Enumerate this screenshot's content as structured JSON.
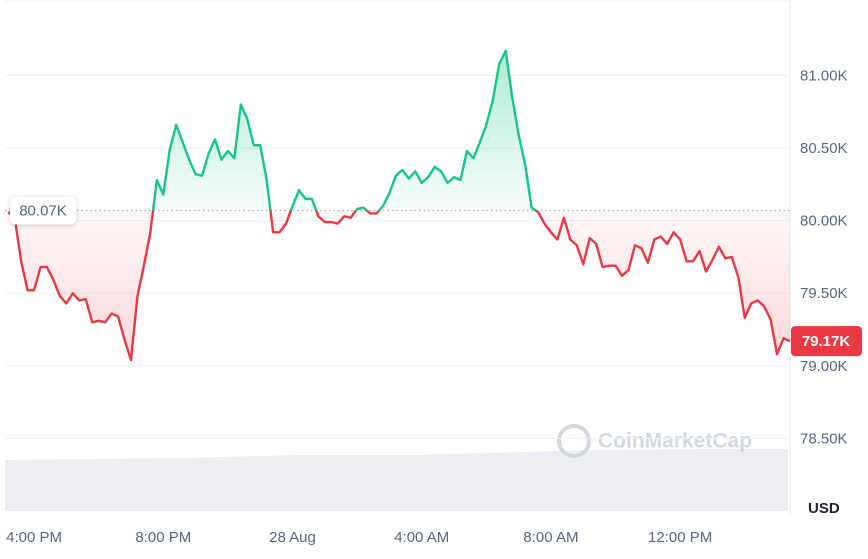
{
  "chart_data": {
    "type": "line",
    "x": [
      -0.8,
      -0.6,
      -0.4,
      -0.2,
      0,
      0.2,
      0.4,
      0.6,
      0.8,
      1,
      1.2,
      1.4,
      1.6,
      1.8,
      2,
      2.2,
      2.4,
      2.6,
      2.8,
      3,
      3.2,
      3.4,
      3.6,
      3.8,
      4,
      4.2,
      4.4,
      4.6,
      4.8,
      5,
      5.2,
      5.4,
      5.6,
      5.8,
      6,
      6.2,
      6.4,
      6.6,
      6.8,
      7,
      7.2,
      7.4,
      7.6,
      7.8,
      8,
      8.2,
      8.4,
      8.6,
      8.8,
      9,
      9.2,
      9.4,
      9.6,
      9.8,
      10,
      10.2,
      10.4,
      10.6,
      10.8,
      11,
      11.2,
      11.4,
      11.6,
      11.8,
      12,
      12.2,
      12.4,
      12.6,
      12.8,
      13,
      13.2,
      13.4,
      13.6,
      13.8,
      14,
      14.2,
      14.4,
      14.6,
      14.8,
      15,
      15.2,
      15.4,
      15.6,
      15.8,
      16,
      16.2,
      16.4,
      16.6,
      16.8,
      17,
      17.2,
      17.4,
      17.6,
      17.8,
      18,
      18.2,
      18.4,
      18.6,
      18.8,
      19,
      19.2,
      19.4,
      19.6,
      19.8,
      20,
      20.2,
      20.4,
      20.6,
      20.8,
      21,
      21.2,
      21.4,
      21.6,
      21.8,
      22,
      22.2,
      22.4,
      22.6,
      22.8,
      23,
      23.2,
      23.4
    ],
    "values": [
      80060,
      80020,
      79720,
      79520,
      79520,
      79680,
      79680,
      79590,
      79480,
      79430,
      79500,
      79450,
      79460,
      79300,
      79310,
      79300,
      79360,
      79340,
      79180,
      79040,
      79480,
      79690,
      79920,
      80280,
      80180,
      80490,
      80660,
      80540,
      80420,
      80320,
      80310,
      80460,
      80560,
      80420,
      80480,
      80430,
      80800,
      80700,
      80520,
      80520,
      80280,
      79920,
      79920,
      79980,
      80100,
      80210,
      80150,
      80150,
      80030,
      79990,
      79990,
      79980,
      80030,
      80020,
      80080,
      80090,
      80050,
      80050,
      80100,
      80190,
      80310,
      80350,
      80290,
      80340,
      80260,
      80300,
      80370,
      80340,
      80260,
      80300,
      80280,
      80480,
      80430,
      80540,
      80660,
      80830,
      81080,
      81170,
      80850,
      80590,
      80390,
      80090,
      80060,
      79980,
      79920,
      79870,
      80020,
      79870,
      79830,
      79700,
      79880,
      79840,
      79680,
      79690,
      79690,
      79620,
      79660,
      79830,
      79810,
      79710,
      79870,
      79890,
      79840,
      79920,
      79870,
      79720,
      79720,
      79790,
      79650,
      79730,
      79820,
      79740,
      79750,
      79610,
      79330,
      79430,
      79450,
      79410,
      79320,
      79080,
      79190,
      79170
    ],
    "colors": {
      "above": "#16c784",
      "below": "#ea3943"
    },
    "baseline": {
      "value": 80070,
      "label": "80.07K"
    },
    "current_price": {
      "value": 79170,
      "label": "79.17K"
    },
    "xlim": [
      -0.9,
      23.4
    ],
    "xticks": [
      {
        "value": 0,
        "label": "4:00 PM"
      },
      {
        "value": 4,
        "label": "8:00 PM"
      },
      {
        "value": 8,
        "label": "28 Aug"
      },
      {
        "value": 12,
        "label": "4:00 AM"
      },
      {
        "value": 16,
        "label": "8:00 AM"
      },
      {
        "value": 20,
        "label": "12:00 PM"
      }
    ],
    "ylim": [
      78000,
      81520
    ],
    "yticks": [
      {
        "value": 78500,
        "label": "78.50K"
      },
      {
        "value": 79000,
        "label": "79.00K"
      },
      {
        "value": 79500,
        "label": "79.50K"
      },
      {
        "value": 80000,
        "label": "80.00K"
      },
      {
        "value": 80500,
        "label": "80.50K"
      },
      {
        "value": 81000,
        "label": "81.00K"
      }
    ],
    "y_unit_label": "USD",
    "watermark": "CoinMarketCap",
    "grid": true
  }
}
